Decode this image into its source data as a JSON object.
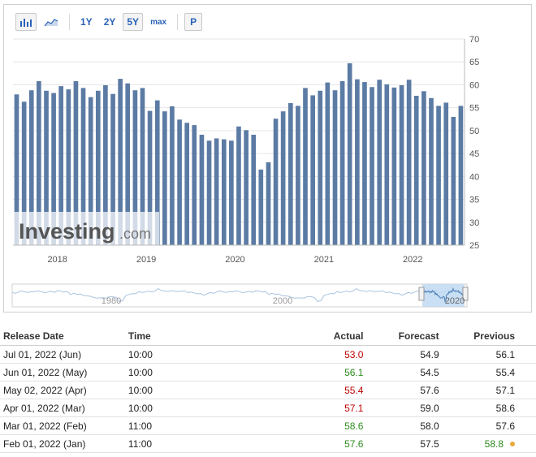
{
  "toolbar": {
    "buttons": [
      "1Y",
      "2Y",
      "5Y",
      "max"
    ],
    "active": "5Y",
    "extra_button": "P"
  },
  "watermark": {
    "brand": "Investing",
    "suffix": ".com"
  },
  "colors": {
    "bar": "#5b7ba4",
    "navigator_fill": "#bfd9f2",
    "red": "#c00000",
    "green": "#2e8b1e",
    "dot": "#e8a93c"
  },
  "chart_data": {
    "type": "bar",
    "y_ticks": [
      25,
      30,
      35,
      40,
      45,
      50,
      55,
      60,
      65,
      70
    ],
    "ylim": [
      25,
      70
    ],
    "x_tick_labels": [
      "2018",
      "2019",
      "2020",
      "2021",
      "2022"
    ],
    "x_tick_positions": [
      2018,
      2019,
      2020,
      2021,
      2022
    ],
    "x_start": 2017.5,
    "grid": "horizontal",
    "series": [
      {
        "x": [
          2017.541,
          2017.625,
          2017.708,
          2017.791,
          2017.875,
          2017.958,
          2018.041,
          2018.125,
          2018.208,
          2018.291,
          2018.375,
          2018.458,
          2018.541,
          2018.625,
          2018.708,
          2018.791,
          2018.875,
          2018.958,
          2019.041,
          2019.125,
          2019.208,
          2019.291,
          2019.375,
          2019.458,
          2019.541,
          2019.625,
          2019.708,
          2019.791,
          2019.875,
          2019.958,
          2020.041,
          2020.125,
          2020.208,
          2020.291,
          2020.375,
          2020.458,
          2020.541,
          2020.625,
          2020.708,
          2020.791,
          2020.875,
          2020.958,
          2021.041,
          2021.125,
          2021.208,
          2021.291,
          2021.375,
          2021.458,
          2021.541,
          2021.625,
          2021.708,
          2021.791,
          2021.875,
          2021.958,
          2022.041,
          2022.125,
          2022.208,
          2022.291,
          2022.375,
          2022.458,
          2022.541
        ],
        "values": [
          57.9,
          56.3,
          58.8,
          60.8,
          58.7,
          58.2,
          59.7,
          59.0,
          60.8,
          59.3,
          57.3,
          58.7,
          59.9,
          58.0,
          61.3,
          60.3,
          58.8,
          59.3,
          54.3,
          56.6,
          54.2,
          55.3,
          52.4,
          51.7,
          51.2,
          49.1,
          47.8,
          48.3,
          48.1,
          47.8,
          50.9,
          50.1,
          49.1,
          41.5,
          43.1,
          52.6,
          54.2,
          56.0,
          55.4,
          59.3,
          57.7,
          58.7,
          60.5,
          58.8,
          60.8,
          64.7,
          61.2,
          60.6,
          59.5,
          61.1,
          60.1,
          59.4,
          59.9,
          61.1,
          57.6,
          58.6,
          57.1,
          55.4,
          56.1,
          53.0,
          55.4
        ]
      }
    ],
    "navigator": {
      "labels": [
        "1980",
        "2000",
        "2020"
      ]
    }
  },
  "table": {
    "headers": {
      "date": "Release Date",
      "time": "Time",
      "actual": "Actual",
      "forecast": "Forecast",
      "previous": "Previous"
    },
    "rows": [
      {
        "date": "Jul 01, 2022 (Jun)",
        "time": "10:00",
        "actual": "53.0",
        "actual_color": "red",
        "forecast": "54.9",
        "previous": "56.1",
        "previous_color": ""
      },
      {
        "date": "Jun 01, 2022 (May)",
        "time": "10:00",
        "actual": "56.1",
        "actual_color": "green",
        "forecast": "54.5",
        "previous": "55.4",
        "previous_color": ""
      },
      {
        "date": "May 02, 2022 (Apr)",
        "time": "10:00",
        "actual": "55.4",
        "actual_color": "red",
        "forecast": "57.6",
        "previous": "57.1",
        "previous_color": ""
      },
      {
        "date": "Apr 01, 2022 (Mar)",
        "time": "10:00",
        "actual": "57.1",
        "actual_color": "red",
        "forecast": "59.0",
        "previous": "58.6",
        "previous_color": ""
      },
      {
        "date": "Mar 01, 2022 (Feb)",
        "time": "11:00",
        "actual": "58.6",
        "actual_color": "green",
        "forecast": "58.0",
        "previous": "57.6",
        "previous_color": ""
      },
      {
        "date": "Feb 01, 2022 (Jan)",
        "time": "11:00",
        "actual": "57.6",
        "actual_color": "green",
        "forecast": "57.5",
        "previous": "58.8",
        "previous_color": "green",
        "previous_dot": true
      }
    ]
  }
}
